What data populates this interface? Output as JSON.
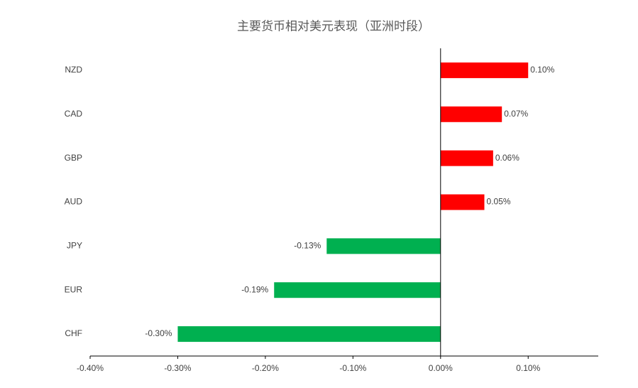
{
  "chart_data": {
    "type": "hbar",
    "title": "主要货币相对美元表现（亚洲时段）",
    "categories": [
      "NZD",
      "CAD",
      "GBP",
      "AUD",
      "JPY",
      "EUR",
      "CHF"
    ],
    "values": [
      0.1,
      0.07,
      0.06,
      0.05,
      -0.13,
      -0.19,
      -0.3
    ],
    "value_labels": [
      "0.10%",
      "0.07%",
      "0.06%",
      "0.05%",
      "-0.13%",
      "-0.19%",
      "-0.30%"
    ],
    "colors": [
      "#ff0000",
      "#ff0000",
      "#ff0000",
      "#ff0000",
      "#00b050",
      "#00b050",
      "#00b050"
    ],
    "xlim": [
      -0.4,
      0.18
    ],
    "xticks": [
      {
        "value": -0.4,
        "label": "-0.40%"
      },
      {
        "value": -0.3,
        "label": "-0.30%"
      },
      {
        "value": -0.2,
        "label": "-0.20%"
      },
      {
        "value": -0.1,
        "label": "-0.10%"
      },
      {
        "value": 0,
        "label": "0.00%"
      },
      {
        "value": 0.1,
        "label": "0.10%"
      }
    ],
    "grid": false
  }
}
